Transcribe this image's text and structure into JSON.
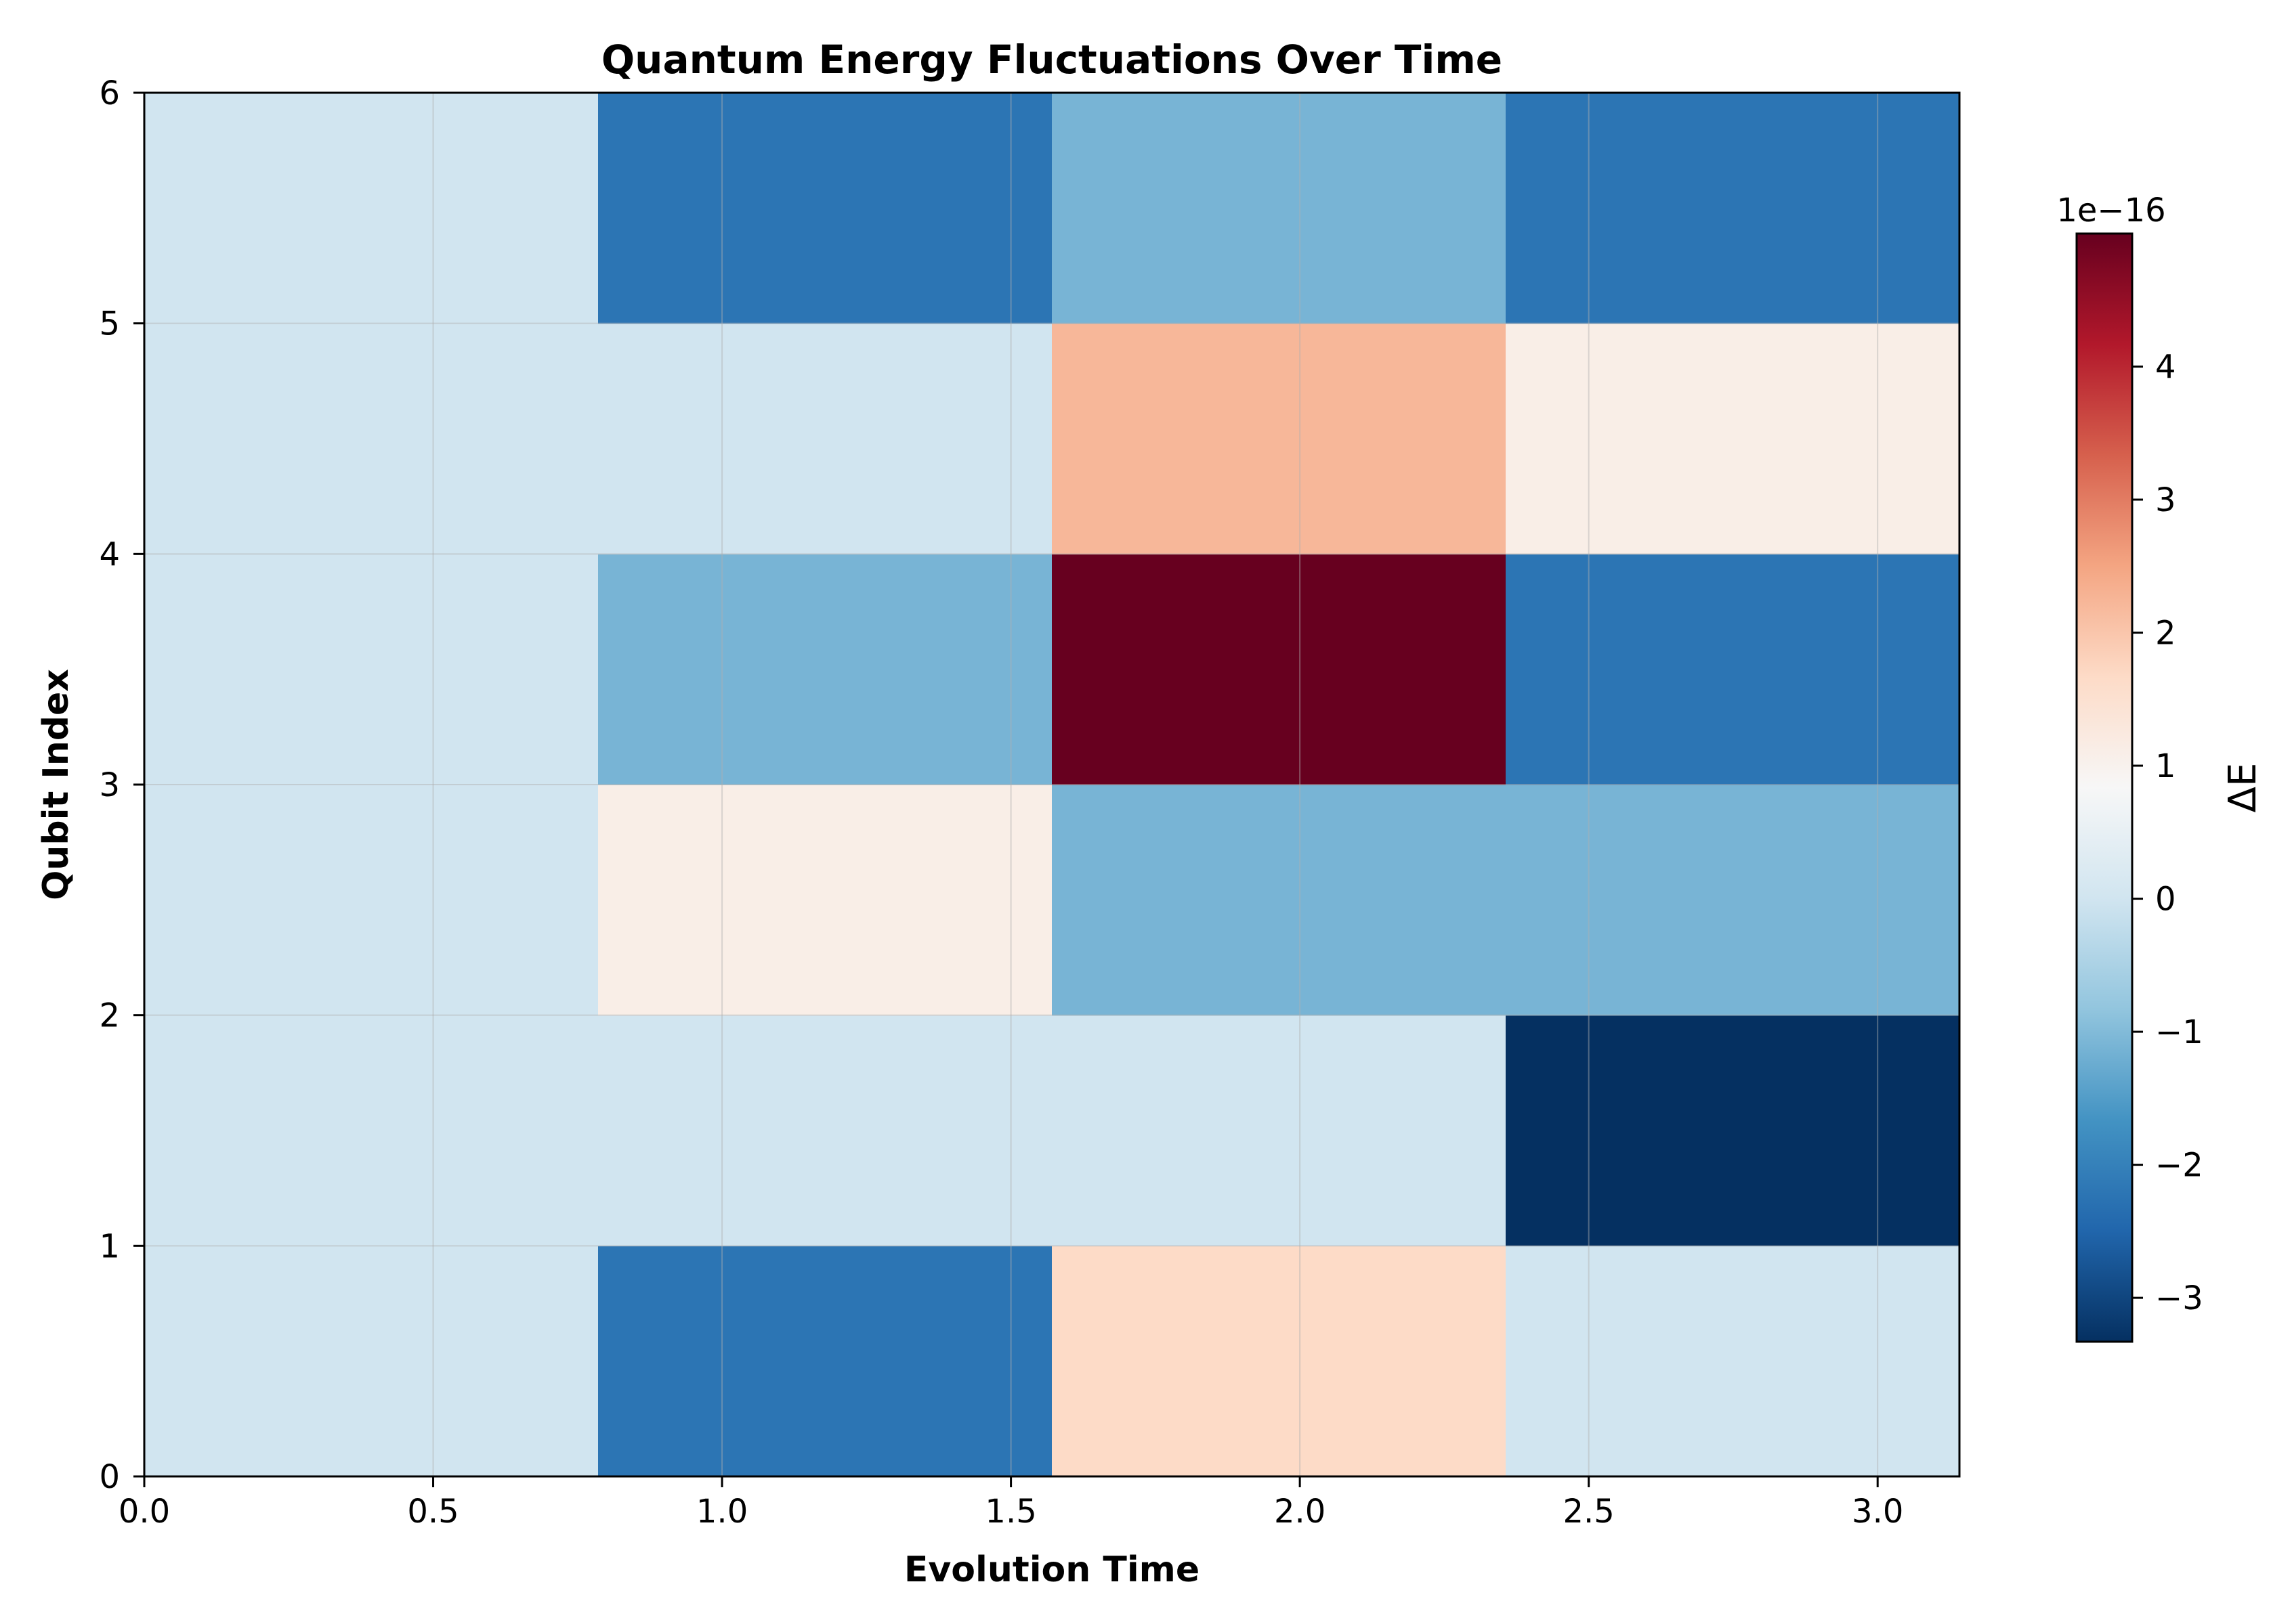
{
  "chart_data": {
    "type": "heatmap",
    "title": "Quantum Energy Fluctuations Over Time",
    "xlabel": "Evolution Time",
    "ylabel": "Qubit Index",
    "x_edges": [
      0,
      0.7854,
      1.5708,
      2.3562,
      3.1416
    ],
    "y_edges": [
      0,
      1,
      2,
      3,
      4,
      5,
      6
    ],
    "xlim": [
      0,
      3.1416
    ],
    "ylim": [
      0,
      6
    ],
    "x_ticks": [
      0.0,
      0.5,
      1.0,
      1.5,
      2.0,
      2.5,
      3.0
    ],
    "x_tick_labels": [
      "0.0",
      "0.5",
      "1.0",
      "1.5",
      "2.0",
      "2.5",
      "3.0"
    ],
    "y_ticks": [
      0,
      1,
      2,
      3,
      4,
      5,
      6
    ],
    "y_tick_labels": [
      "0",
      "1",
      "2",
      "3",
      "4",
      "5",
      "6"
    ],
    "grid": true,
    "colormap": "RdBu_r",
    "colorbar": {
      "label": "ΔE",
      "offset_text": "1e−16",
      "range": [
        -3.33,
        5.0
      ],
      "ticks": [
        -3,
        -2,
        -1,
        0,
        1,
        2,
        3,
        4
      ],
      "tick_labels": [
        "−3",
        "−2",
        "−1",
        "0",
        "1",
        "2",
        "3",
        "4"
      ],
      "placement": "right"
    },
    "values_scale": "1e-16",
    "values": [
      [
        0,
        -2.22,
        1.67,
        0
      ],
      [
        0,
        0,
        0,
        -3.33
      ],
      [
        0,
        1.11,
        -1.11,
        -1.11
      ],
      [
        0,
        -1.11,
        5.0,
        -2.22
      ],
      [
        0,
        0,
        2.22,
        1.11
      ],
      [
        0,
        -2.22,
        -1.11,
        -2.22
      ]
    ]
  }
}
